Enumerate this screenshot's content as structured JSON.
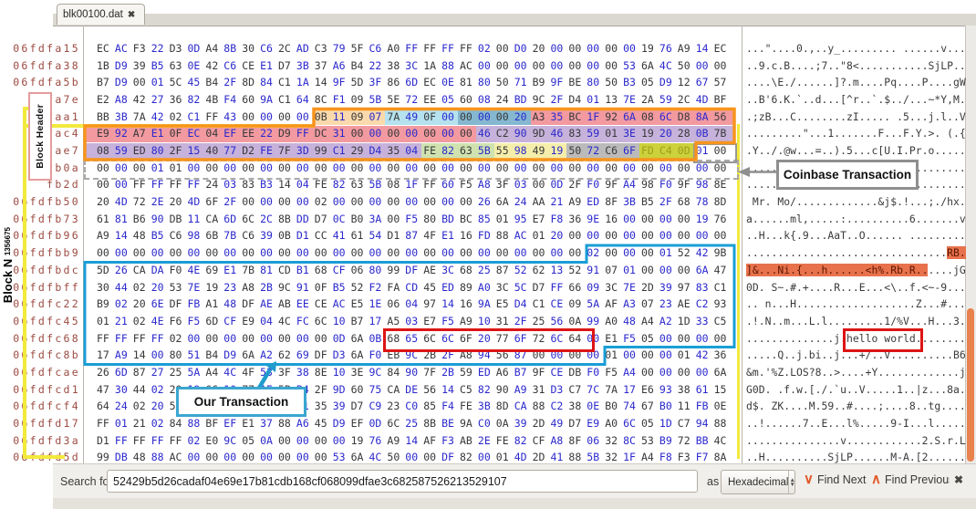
{
  "tab": {
    "title": "blk00100.dat",
    "close_icon": "✖"
  },
  "annotations": {
    "block_header": "Block Header",
    "coinbase": "Coinbase Transaction",
    "our_transaction": "Our Transaction",
    "block_n": "Block N",
    "block_number": "1356675",
    "hello_world": "hello world"
  },
  "search": {
    "label": "Search for:",
    "value": "52429b5d26cadaf04e69e17b81cdb168cf068099dfae3c682587526213529107",
    "as_label": "as",
    "mode": "Hexadecimal",
    "find_next": "Find Next",
    "find_previous": "Find Previous",
    "close_icon": "✖",
    "spin_up": "▲",
    "spin_down": "▼"
  },
  "colors": {
    "magic_peach": "#fad9ac",
    "cyan_light": "#b5e2ee",
    "cyan_dark": "#85b8d0",
    "salmon": "#f29aa0",
    "lavender": "#c6b2da",
    "green": "#cfe2b0",
    "pale_yellow": "#f5eeab",
    "gray_hl": "#bbbbbb",
    "olive": "#ccd13c",
    "match_orange": "#e8724c",
    "header_border_orange": "#f7941d",
    "tx_border_blue": "#1a9ed6",
    "red_box": "#de1414",
    "bracket_yellow": "#f2e93d"
  },
  "hex_editor": {
    "rows": [
      {
        "offset": "06fdfa15",
        "bytes": "EC AC F3 22 D3 0D A4 8B 30 C6 2C AD C3 79 5F C6 A0 FF FF FF FF 02 00 D0 20 00 00 00 00 00 19 76 A9 14 EC"
      },
      {
        "offset": "06fdfa38",
        "bytes": "1B D9 39 B5 63 0E 42 C6 CE E1 D7 3B 37 A6 B4 22 38 3C 1A 88 AC 00 00 00 00 00 00 00 00 53 6A 4C 50 00 00"
      },
      {
        "offset": "06fdfa5b",
        "bytes": "B7 D9 00 01 5C 45 B4 2F 8D 84 C1 1A 14 9F 5D 3F 86 6D EC 0E 81 80 50 71 B9 9F BE 80 50 B3 05 D9 12 67 57"
      },
      {
        "offset": "fa7e",
        "bytes": "E2 A8 42 27 36 82 4B F4 60 9A C1 64 8C F1 09 5B 5E 72 EE 05 60 08 24 BD 9C 2F D4 01 13 7E 2A 59 2C 4D BF"
      },
      {
        "offset": "faa1",
        "bytes": "BB 3B 7A 42 02 C1 FF 43 00 00 00 00 0B 11 09 07 7A 49 0F 00 00 00 00 20 A3 35 BC 1F 92 6A 08 6C D8 8A 56"
      },
      {
        "offset": "fac4",
        "bytes": "E9 92 A7 E1 0F EC 04 EF EE 22 D9 FF DC 31 00 00 00 00 00 00 00 46 C2 90 9D 46 83 59 01 3E 19 20 28 0B 7B"
      },
      {
        "offset": "fae7",
        "bytes": "08 59 ED 80 2F 15 40 77 D2 FE 7F 3D 99 C1 29 D4 35 04 FE 82 63 5B 55 98 49 19 50 72 C6 6F FD C4 0D 01 00"
      },
      {
        "offset": "fb0a",
        "bytes": "00 00 00 01 01 00 00 00 00 00 00 00 00 00 00 00 00 00 00 00 00 00 00 00 00 00 00 00 00 00 00 00 00 00 00"
      },
      {
        "offset": "fb2d",
        "bytes": "00 00 FF FF FF FF 24 03 83 B3 14 04 FE 82 63 5B 08 1F FF 60 F5 A8 3F 03 00 0D 2F F0 9F A4 98 F0 9F 98 8E"
      },
      {
        "offset": "06fdfb50",
        "bytes": "20 4D 72 2E 20 4D 6F 2F 00 00 00 00 02 00 00 00 00 00 00 00 00 26 6A 24 AA 21 A9 ED 8F 3B B5 2F 68 78 8D"
      },
      {
        "offset": "06fdfb73",
        "bytes": "61 81 B6 90 DB 11 CA 6D 6C 2C 8B DD D7 0C B0 3A 00 F5 80 BD BC 85 01 95 E7 F8 36 9E 16 00 00 00 00 19 76"
      },
      {
        "offset": "06fdfb96",
        "bytes": "A9 14 48 B5 C6 98 6B 7B C6 39 0B D1 CC 41 61 54 D1 87 4F E1 16 FD 88 AC 01 20 00 00 00 00 00 00 00 00 00"
      },
      {
        "offset": "06fdfbb9",
        "bytes": "00 00 00 00 00 00 00 00 00 00 00 00 00 00 00 00 00 00 00 00 00 00 00 00 00 00 00 02 00 00 00 01 52 42 9B"
      },
      {
        "offset": "06fdfbdc",
        "bytes": "5D 26 CA DA F0 4E 69 E1 7B 81 CD B1 68 CF 06 80 99 DF AE 3C 68 25 87 52 62 13 52 91 07 01 00 00 00 6A 47"
      },
      {
        "offset": "06fdfbff",
        "bytes": "30 44 02 20 53 7E 19 23 A8 2B 9C 91 0F B5 52 F2 FA CD 45 ED 89 A0 3C 5C D7 FF 66 09 3C 7E 2D 39 97 83 C1"
      },
      {
        "offset": "06fdfc22",
        "bytes": "B9 02 20 6E DF FB A1 48 DF AE AB EE CE AC E5 1E 06 04 97 14 16 9A E5 D4 C1 CE 09 5A AF A3 07 23 AE C2 93"
      },
      {
        "offset": "06fdfc45",
        "bytes": "01 21 02 4E F6 F5 6D CF E9 04 4C FC 6C 10 B7 17 A5 03 E7 F5 A9 10 31 2F 25 56 0A 99 A0 48 A4 A2 1D 33 C5"
      },
      {
        "offset": "06fdfc68",
        "bytes": "FF FF FF FF 02 00 00 00 00 00 00 00 00 0D 6A 0B 68 65 6C 6C 6F 20 77 6F 72 6C 64 00 E1 F5 05 00 00 00 00"
      },
      {
        "offset": "06fdfc8b",
        "bytes": "17 A9 14 00 80 51 B4 D9 6A A2 62 69 DF D3 6A F0 EB 9C 2B 2F A8 94 56 87 00 00 00 00 01 00 00 00 01 42 36"
      },
      {
        "offset": "06fdfcae",
        "bytes": "26 6D 87 27 25 5A A4 4C 4F 53 3F 38 8E 10 3E 9C 84 90 7F 2B 59 ED A6 B7 9F CE DB F0 F5 A4 00 00 00 00 6A"
      },
      {
        "offset": "06fdfcd1",
        "bytes": "47 30 44 02 20 19 66 10 77 1E 5B B4 2F 9D 60 75 CA DE 56 14 C5 82 90 A9 31 D3 C7 7C 7A 17 E6 93 38 61 15"
      },
      {
        "offset": "06fdfcf4",
        "bytes": "64 24 02 20 5A 4B 0E 9D CD E1 4D 91 35 39 D7 C9 23 C0 85 F4 FE 3B 8D CA 88 C2 38 0E B0 74 67 B0 11 FB 0E"
      },
      {
        "offset": "06fdfd17",
        "bytes": "FF 01 21 02 84 88 BF EF E1 37 88 A6 45 D9 EF 0D 6C 25 8B BE 9A C0 0A 39 2D 49 D7 E9 A0 6C 05 1D C7 94 88"
      },
      {
        "offset": "06fdfd3a",
        "bytes": "D1 FF FF FF FF 02 E0 9C 05 0A 00 00 00 00 19 76 A9 14 AF F3 AB 2E FE 82 CF A8 8F 06 32 8C 53 B9 72 BB 4C"
      },
      {
        "offset": "06fdfd5d",
        "bytes": "99 DB 48 88 AC 00 00 00 00 00 00 00 00 53 6A 4C 50 00 00 DF 82 00 01 4D 2D 41 88 5B 32 1F A4 F8 F3 F7 8A"
      }
    ],
    "hex_highlights": [
      {
        "row": 4,
        "from": 12,
        "to": 15,
        "color": "#fad9ac"
      },
      {
        "row": 4,
        "from": 16,
        "to": 19,
        "color": "#b5e2ee"
      },
      {
        "row": 4,
        "from": 20,
        "to": 23,
        "color": "#85b8d0"
      },
      {
        "row": 4,
        "from": 24,
        "to": 34,
        "color": "#f29aa0"
      },
      {
        "row": 5,
        "from": 0,
        "to": 20,
        "color": "#f29aa0"
      },
      {
        "row": 5,
        "from": 21,
        "to": 34,
        "color": "#c6b2da"
      },
      {
        "row": 6,
        "from": 0,
        "to": 17,
        "color": "#c6b2da"
      },
      {
        "row": 6,
        "from": 18,
        "to": 21,
        "color": "#cfe2b0"
      },
      {
        "row": 6,
        "from": 22,
        "to": 25,
        "color": "#f5eeab"
      },
      {
        "row": 6,
        "from": 26,
        "to": 29,
        "color": "#bbbbbb"
      },
      {
        "row": 6,
        "from": 30,
        "to": 32,
        "color": "#ccd13c",
        "text": "#9aa019"
      }
    ],
    "ascii_highlights": [
      {
        "row": 12,
        "from": 32,
        "to": 34,
        "color": "#e8724c"
      },
      {
        "row": 13,
        "from": 0,
        "to": 28,
        "color": "#e8724c"
      }
    ]
  }
}
